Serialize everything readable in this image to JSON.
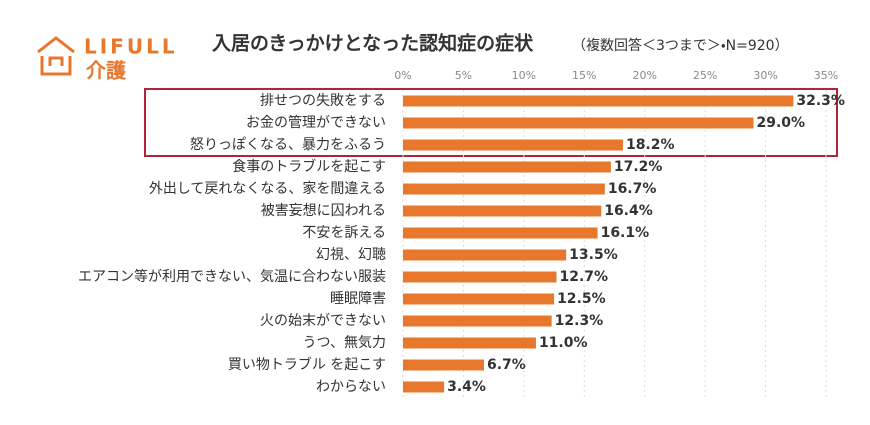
{
  "logo": {
    "brand": "LIFULL",
    "service": "介護"
  },
  "chart_data": {
    "type": "hbar",
    "title": "入居のきっかけとなった認知症の症状",
    "subtitle": "（複数回答＜3つまで＞・N=920）",
    "categories": [
      "排せつの失敗をする",
      "お金の管理ができない",
      "怒りっぽくなる、暴力をふるう",
      "食事のトラブルを起こす",
      "外出して戻れなくなる、家を間違える",
      "被害妄想に囚われる",
      "不安を訴える",
      "幻視、幻聴",
      "エアコン等が利用できない、気温に合わない服装",
      "睡眠障害",
      "火の始末ができない",
      "うつ、無気力",
      "買い物トラブル を起こす",
      "わからない"
    ],
    "values": [
      32.3,
      29.0,
      18.2,
      17.2,
      16.7,
      16.4,
      16.1,
      13.5,
      12.7,
      12.5,
      12.3,
      11.0,
      6.7,
      3.4
    ],
    "value_labels": [
      "32.3%",
      "29.0%",
      "18.2%",
      "17.2%",
      "16.7%",
      "16.4%",
      "16.1%",
      "13.5%",
      "12.7%",
      "12.5%",
      "12.3%",
      "11.0%",
      "6.7%",
      "3.4%"
    ],
    "color": "#e8772e",
    "xlim": [
      0,
      35
    ],
    "xticks": [
      {
        "value": 0,
        "label": "0%"
      },
      {
        "value": 5,
        "label": "5%"
      },
      {
        "value": 10,
        "label": "10%"
      },
      {
        "value": 15,
        "label": "15%"
      },
      {
        "value": 20,
        "label": "20%"
      },
      {
        "value": 25,
        "label": "25%"
      },
      {
        "value": 30,
        "label": "30%"
      },
      {
        "value": 35,
        "label": "35%"
      }
    ],
    "grid": true
  }
}
